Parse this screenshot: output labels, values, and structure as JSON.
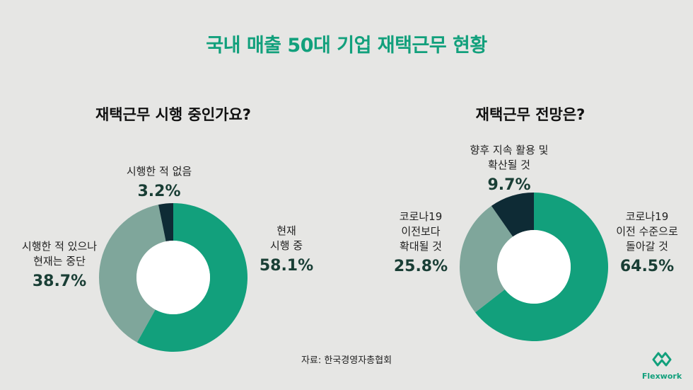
{
  "title": "국내 매출 50대 기업 재택근무 현황",
  "source": "자료: 한국경영자총협회",
  "brand": "Flexwork",
  "colors": {
    "green": "#12a07c",
    "gray": "#7fa69b",
    "navy": "#0e2b35",
    "bg": "#e6e6e4"
  },
  "chart_data": [
    {
      "type": "pie",
      "title": "재택근무 시행 중인가요?",
      "slices": [
        {
          "label": "현재\n시행 중",
          "value": 58.1,
          "display": "58.1%",
          "color": "#12a07c"
        },
        {
          "label": "시행한 적 있으나\n현재는 중단",
          "value": 38.7,
          "display": "38.7%",
          "color": "#7fa69b"
        },
        {
          "label": "시행한 적 없음",
          "value": 3.2,
          "display": "3.2%",
          "color": "#0e2b35"
        }
      ]
    },
    {
      "type": "pie",
      "title": "재택근무 전망은?",
      "slices": [
        {
          "label": "코로나19\n이전 수준으로\n돌아갈 것",
          "value": 64.5,
          "display": "64.5%",
          "color": "#12a07c"
        },
        {
          "label": "코로나19\n이전보다\n확대될 것",
          "value": 25.8,
          "display": "25.8%",
          "color": "#7fa69b"
        },
        {
          "label": "향후 지속 활용 및\n확산될 것",
          "value": 9.7,
          "display": "9.7%",
          "color": "#0e2b35"
        }
      ]
    }
  ]
}
